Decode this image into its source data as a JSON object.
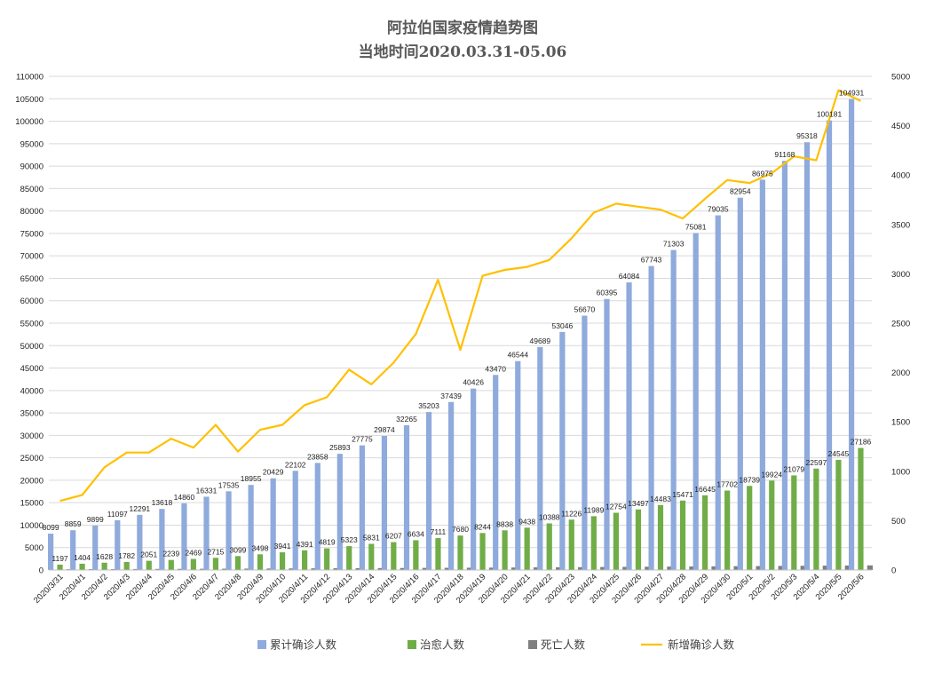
{
  "chart_data": {
    "type": "bar",
    "title": "阿拉伯国家疫情趋势图",
    "subtitle": "当地时间2020.03.31-05.06",
    "categories": [
      "2020/3/31",
      "2020/4/1",
      "2020/4/2",
      "2020/4/3",
      "2020/4/4",
      "2020/4/5",
      "2020/4/6",
      "2020/4/7",
      "2020/4/8",
      "2020/4/9",
      "2020/4/10",
      "2020/4/11",
      "2020/4/12",
      "2020/4/13",
      "2020/4/14",
      "2020/4/15",
      "2020/4/16",
      "2020/4/17",
      "2020/4/18",
      "2020/4/19",
      "2020/4/20",
      "2020/4/21",
      "2020/4/22",
      "2020/4/23",
      "2020/4/24",
      "2020/4/25",
      "2020/4/26",
      "2020/4/27",
      "2020/4/28",
      "2020/4/29",
      "2020/4/30",
      "2020/5/1",
      "2020/5/2",
      "2020/5/3",
      "2020/5/4",
      "2020/5/5",
      "2020/5/6"
    ],
    "series": [
      {
        "name": "累计确诊人数",
        "kind": "bar",
        "axis": "left",
        "color": "#8faadc",
        "labeled": true,
        "values": [
          8099,
          8859,
          9899,
          11097,
          12291,
          13618,
          14860,
          16331,
          17535,
          18955,
          20429,
          22102,
          23858,
          25893,
          27775,
          29874,
          32265,
          35203,
          37439,
          40426,
          43470,
          46544,
          49689,
          53046,
          56670,
          60395,
          64084,
          67743,
          71303,
          75081,
          79035,
          82954,
          86975,
          91168,
          95318,
          100181,
          104931
        ]
      },
      {
        "name": "治愈人数",
        "kind": "bar",
        "axis": "left",
        "color": "#70ad47",
        "labeled": true,
        "values": [
          1197,
          1404,
          1628,
          1782,
          2051,
          2239,
          2469,
          2715,
          3099,
          3498,
          3941,
          4391,
          4819,
          5323,
          5831,
          6207,
          6634,
          7111,
          7680,
          8244,
          8838,
          9438,
          10388,
          11226,
          11989,
          12754,
          13497,
          14483,
          15471,
          16645,
          17702,
          18739,
          19924,
          21079,
          22597,
          24545,
          27186
        ]
      },
      {
        "name": "死亡人数",
        "kind": "bar",
        "axis": "left",
        "color": "#7f7f7f",
        "labeled": false,
        "values": [
          180,
          190,
          205,
          220,
          240,
          255,
          270,
          290,
          310,
          330,
          350,
          370,
          390,
          410,
          430,
          450,
          470,
          490,
          510,
          530,
          560,
          590,
          610,
          640,
          670,
          700,
          730,
          760,
          790,
          820,
          850,
          880,
          910,
          940,
          970,
          1000,
          1030
        ]
      },
      {
        "name": "新增确诊人数",
        "kind": "line",
        "axis": "right",
        "color": "#ffc000",
        "labeled": false,
        "values": [
          700,
          760,
          1040,
          1190,
          1190,
          1330,
          1240,
          1470,
          1200,
          1420,
          1470,
          1670,
          1750,
          2030,
          1880,
          2100,
          2390,
          2940,
          2230,
          2980,
          3040,
          3070,
          3140,
          3360,
          3620,
          3710,
          3680,
          3650,
          3560,
          3760,
          3950,
          3920,
          4020,
          4190,
          4150,
          4860,
          4750
        ]
      }
    ],
    "y_left": {
      "min": 0,
      "max": 110000,
      "step": 5000
    },
    "y_right": {
      "min": 0,
      "max": 5000,
      "step": 500
    },
    "legend": "bottom",
    "grid": true
  }
}
